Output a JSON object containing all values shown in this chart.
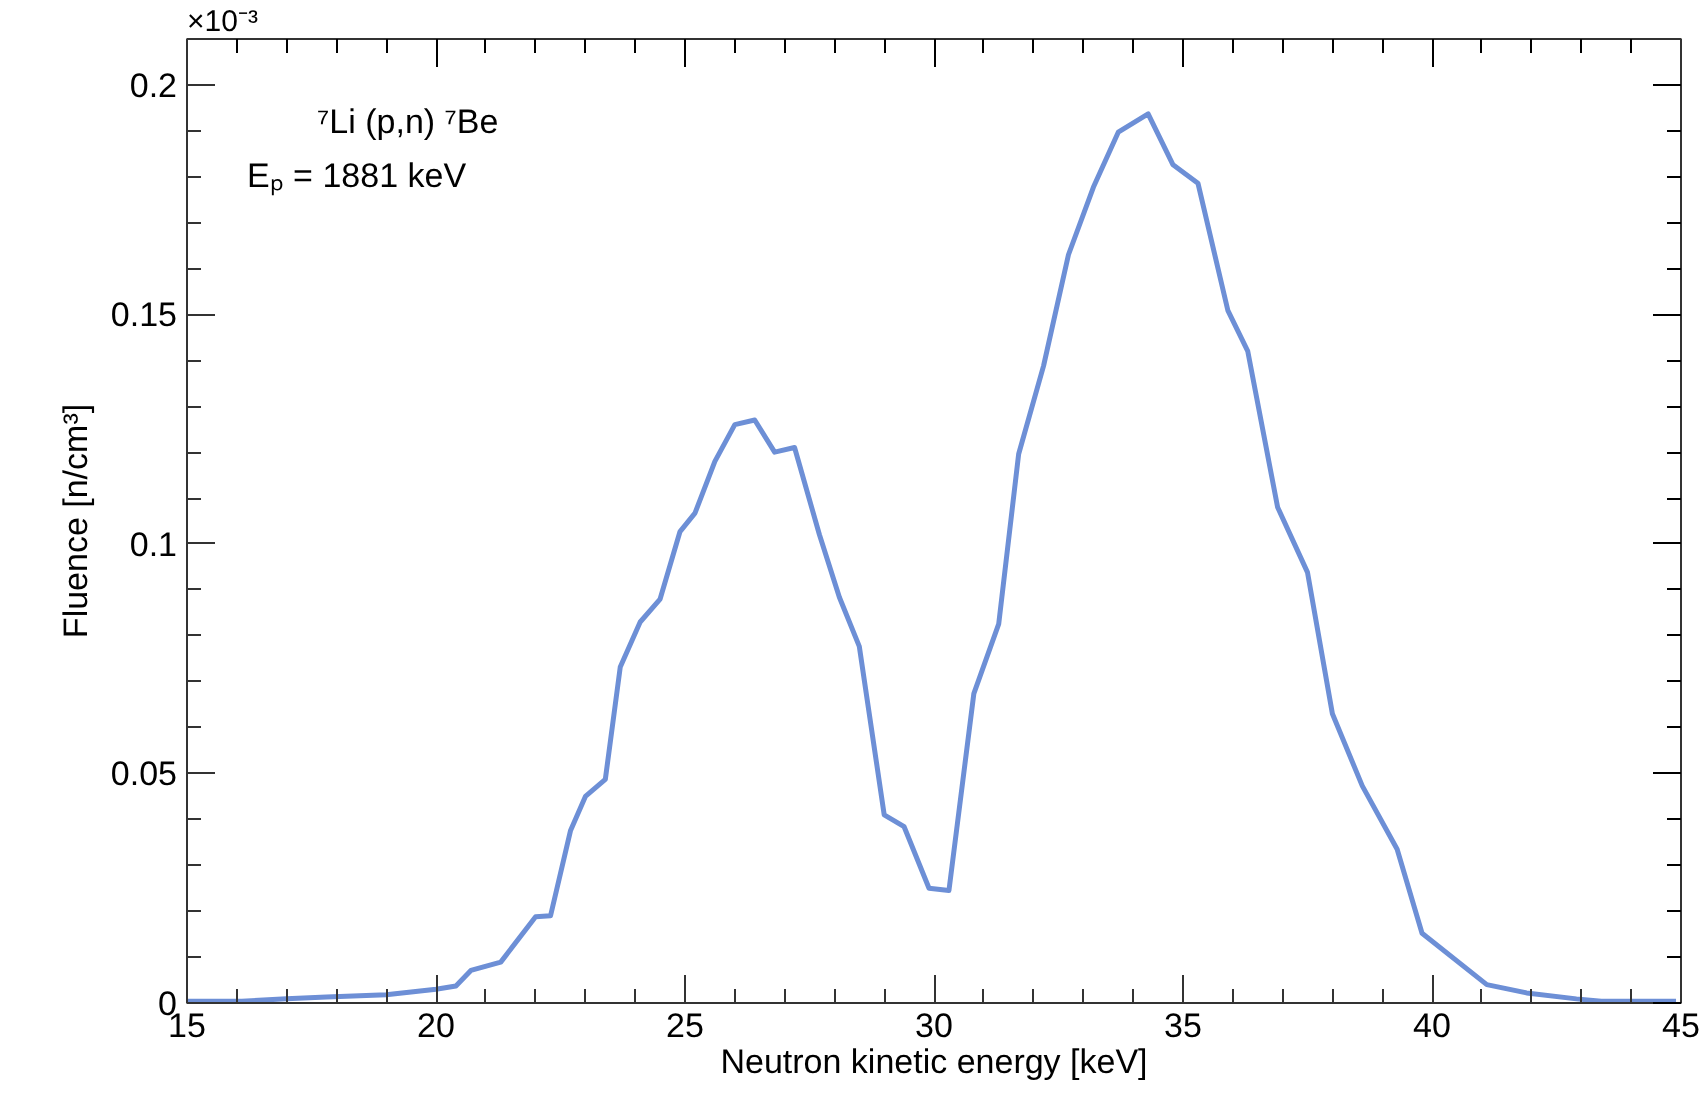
{
  "chart_data": {
    "type": "line",
    "xlabel": "Neutron kinetic energy [keV]",
    "ylabel": "Fluence [n/cm³]",
    "annotations": [
      "×10⁻³",
      "⁷Li (p,n) ⁷Be",
      "Eₚ = 1881 keV"
    ],
    "xlim": [
      15,
      45
    ],
    "ylim": [
      0,
      0.21
    ],
    "xticks": [
      15,
      20,
      25,
      30,
      35,
      40,
      45
    ],
    "yticks": [
      0,
      0.05,
      0.1,
      0.15,
      0.2
    ],
    "grid": false,
    "marker": "none",
    "line_style": "solid",
    "series": [
      {
        "color": "#6d8fd6",
        "x": [
          15,
          16.1,
          17.0,
          17.8,
          19.0,
          20.0,
          20.4,
          20.7,
          21.3,
          22.0,
          22.3,
          22.7,
          23.0,
          23.4,
          23.7,
          24.1,
          24.5,
          24.9,
          25.2,
          25.6,
          26.0,
          26.4,
          26.8,
          27.2,
          27.7,
          28.1,
          28.5,
          29.0,
          29.4,
          29.9,
          30.3,
          30.8,
          31.3,
          31.7,
          32.2,
          32.7,
          33.2,
          33.7,
          34.3,
          34.8,
          35.3,
          35.9,
          36.3,
          36.9,
          37.5,
          38.0,
          38.6,
          39.3,
          39.8,
          41.1,
          41.9,
          42.9,
          43.4,
          44.9
        ],
        "values": [
          0.0004,
          0.0004,
          0.0009,
          0.0013,
          0.0018,
          0.003,
          0.0037,
          0.0071,
          0.0089,
          0.0188,
          0.019,
          0.0375,
          0.045,
          0.0487,
          0.0732,
          0.083,
          0.088,
          0.1027,
          0.1067,
          0.118,
          0.126,
          0.127,
          0.12,
          0.121,
          0.102,
          0.0884,
          0.0777,
          0.041,
          0.0384,
          0.025,
          0.0245,
          0.0674,
          0.0826,
          0.1196,
          0.1388,
          0.163,
          0.1777,
          0.1897,
          0.1937,
          0.1826,
          0.1786,
          0.1509,
          0.142,
          0.108,
          0.0938,
          0.063,
          0.0473,
          0.0335,
          0.0152,
          0.004,
          0.0022,
          0.0009,
          0.0004,
          0.0004
        ]
      }
    ]
  }
}
